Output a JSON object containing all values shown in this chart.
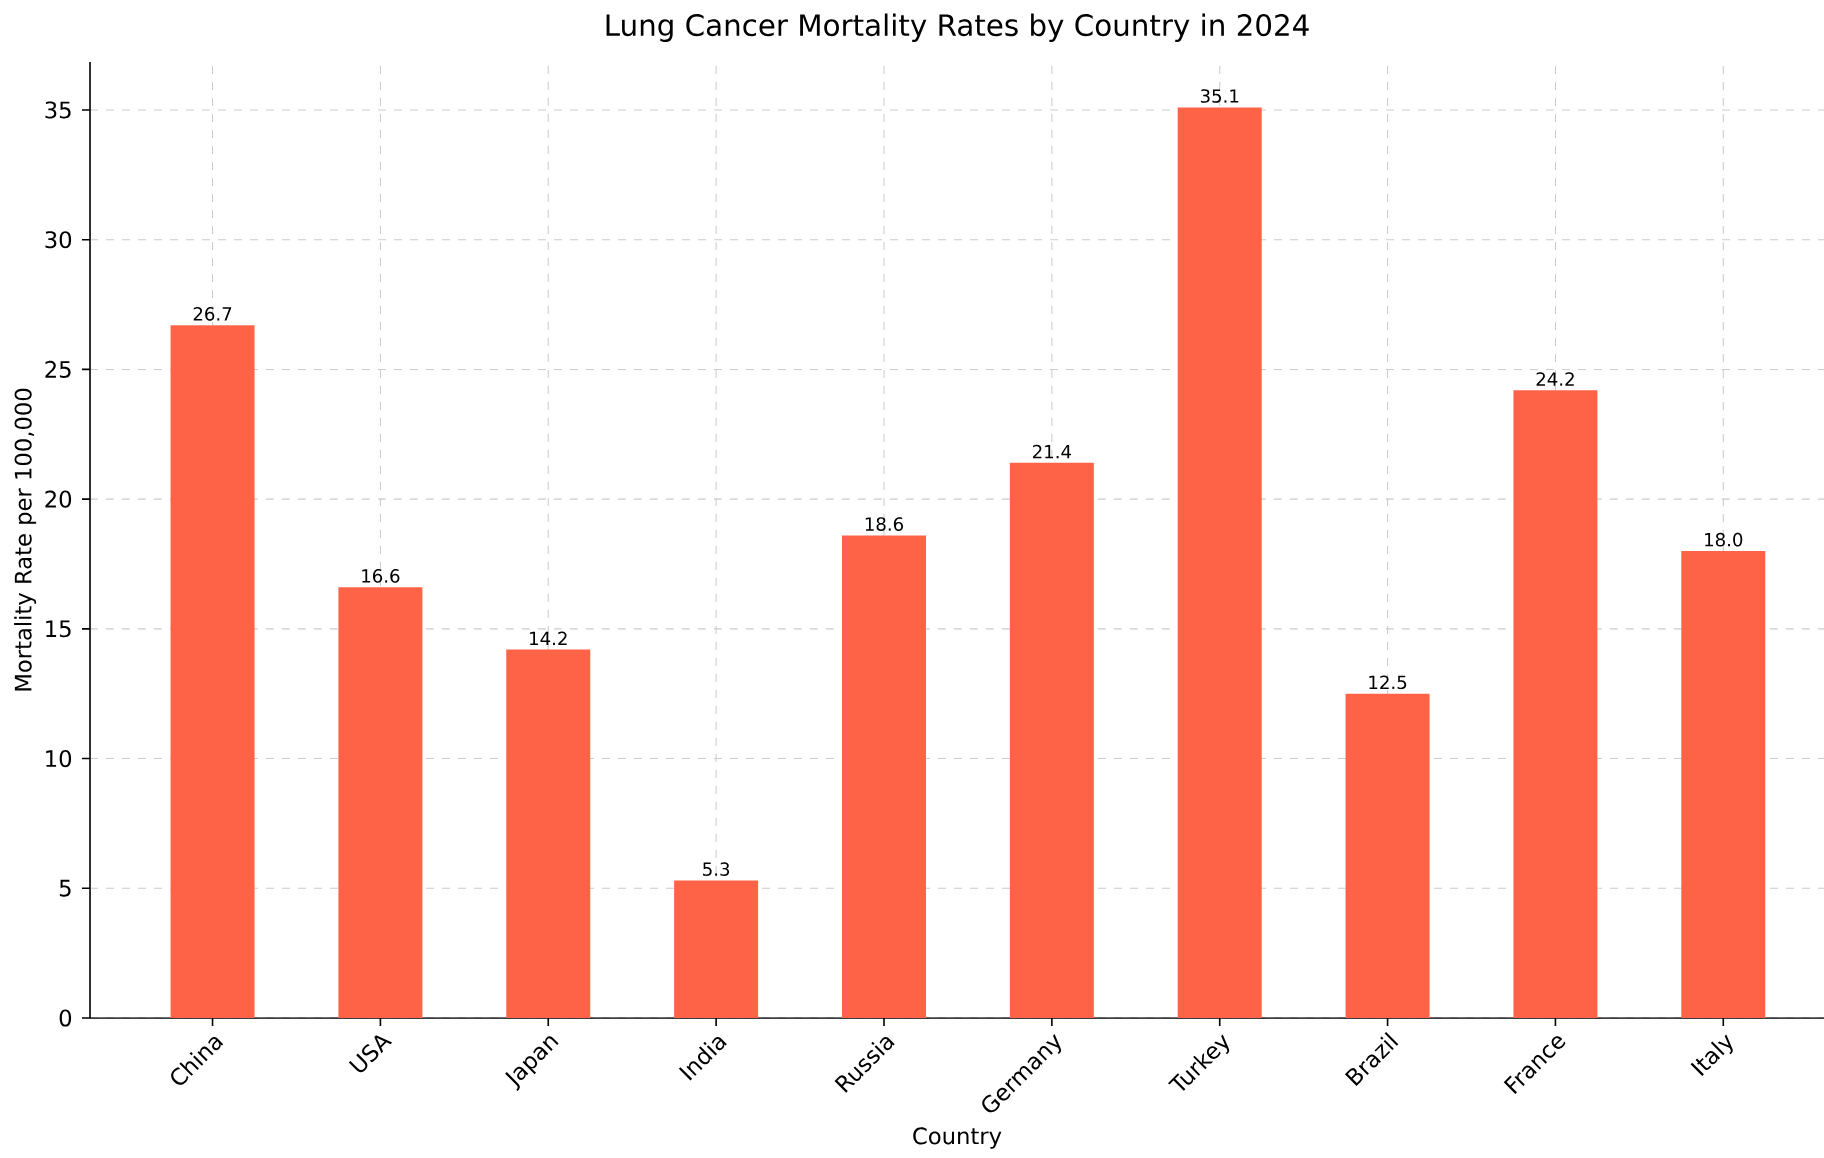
{
  "chart_data": {
    "type": "bar",
    "title": "Lung Cancer Mortality Rates by Country in 2024",
    "xlabel": "Country",
    "ylabel": "Mortality Rate per 100,000",
    "categories": [
      "China",
      "USA",
      "Japan",
      "India",
      "Russia",
      "Germany",
      "Turkey",
      "Brazil",
      "France",
      "Italy"
    ],
    "values": [
      26.7,
      16.6,
      14.2,
      5.3,
      18.6,
      21.4,
      35.1,
      12.5,
      24.2,
      18.0
    ],
    "value_labels": [
      "26.7",
      "16.6",
      "14.2",
      "5.3",
      "18.6",
      "21.4",
      "35.1",
      "12.5",
      "24.2",
      "18.0"
    ],
    "color": "#ff6347",
    "ylim": [
      0,
      36.85
    ],
    "yticks": [
      0,
      5,
      10,
      15,
      20,
      25,
      30,
      35
    ],
    "grid": true
  }
}
